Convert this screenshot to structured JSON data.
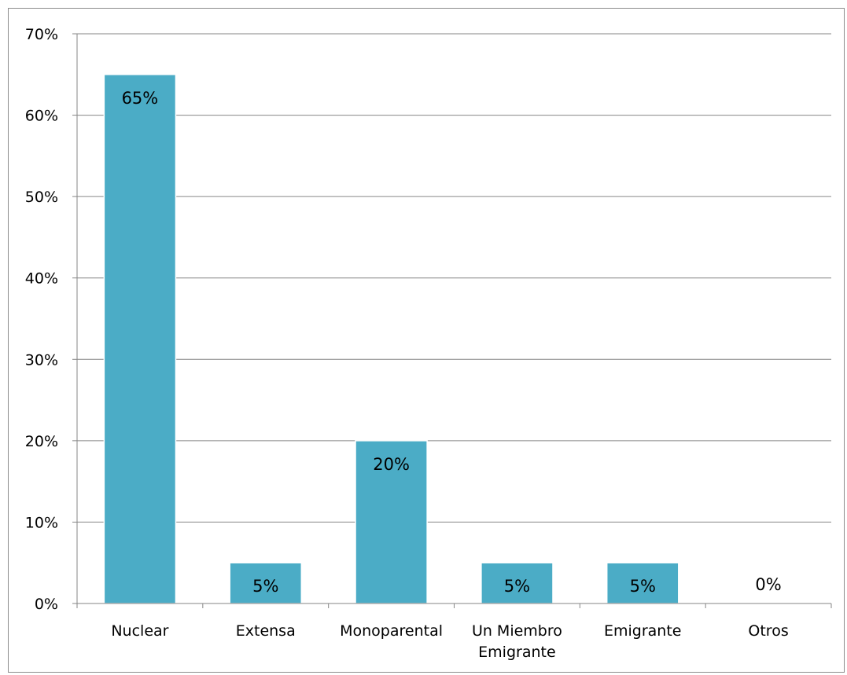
{
  "chart_data": {
    "type": "bar",
    "title": "",
    "xlabel": "",
    "ylabel": "",
    "categories": [
      "Nuclear",
      "Extensa",
      "Monoparental",
      "Un Miembro Emigrante",
      "Emigrante",
      "Otros"
    ],
    "category_lines": [
      [
        "Nuclear"
      ],
      [
        "Extensa"
      ],
      [
        "Monoparental"
      ],
      [
        "Un Miembro",
        "Emigrante"
      ],
      [
        "Emigrante"
      ],
      [
        "Otros"
      ]
    ],
    "values": [
      65,
      5,
      20,
      5,
      5,
      0
    ],
    "data_labels": [
      "65%",
      "5%",
      "20%",
      "5%",
      "5%",
      "0%"
    ],
    "ylim": [
      0,
      70
    ],
    "yticks": [
      0,
      10,
      20,
      30,
      40,
      50,
      60,
      70
    ],
    "ytick_labels": [
      "0%",
      "10%",
      "20%",
      "30%",
      "40%",
      "50%",
      "60%",
      "70%"
    ],
    "grid": true,
    "legend": false,
    "colors": {
      "bar": "#4BACC6",
      "bar_edge": "#ffffff",
      "grid": "#868686",
      "frame": "#8c8c8c"
    }
  }
}
